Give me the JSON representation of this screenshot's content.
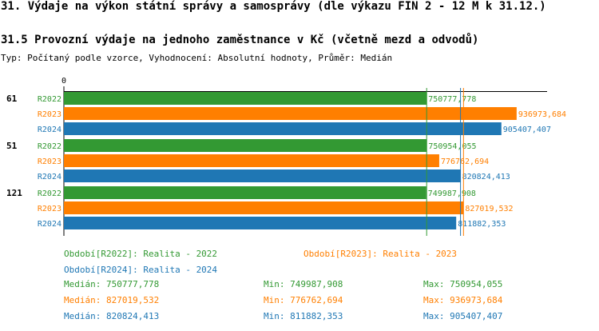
{
  "header": {
    "title": "31. Výdaje na výkon státní správy a samosprávy (dle výkazu FIN 2 - 12 M k 31.12.)",
    "subtitle": "31.5 Provozní výdaje na jednoho zaměstnance v Kč (včetně mezd a odvodů)",
    "meta": "Typ: Počítaný podle vzorce, Vyhodnocení: Absolutní hodnoty, Průměr: Medián"
  },
  "colors": {
    "R2022": "#339933",
    "R2023": "#ff7f00",
    "R2024": "#1f77b4"
  },
  "chart_data": {
    "type": "bar",
    "orientation": "horizontal",
    "axis_zero_label": "0",
    "xlim": [
      0,
      1000000
    ],
    "groups": [
      {
        "label": "61",
        "bars": [
          {
            "series": "R2022",
            "value": 750777.778,
            "text": "750777,778"
          },
          {
            "series": "R2023",
            "value": 936973.684,
            "text": "936973,684"
          },
          {
            "series": "R2024",
            "value": 905407.407,
            "text": "905407,407"
          }
        ]
      },
      {
        "label": "51",
        "bars": [
          {
            "series": "R2022",
            "value": 750954.055,
            "text": "750954,055"
          },
          {
            "series": "R2023",
            "value": 776762.694,
            "text": "776762,694"
          },
          {
            "series": "R2024",
            "value": 820824.413,
            "text": "820824,413"
          }
        ]
      },
      {
        "label": "121",
        "bars": [
          {
            "series": "R2022",
            "value": 749987.908,
            "text": "749987,908"
          },
          {
            "series": "R2023",
            "value": 827019.532,
            "text": "827019,532"
          },
          {
            "series": "R2024",
            "value": 811882.353,
            "text": "811882,353"
          }
        ]
      }
    ],
    "medians": [
      {
        "series": "R2022",
        "value": 750777.778
      },
      {
        "series": "R2023",
        "value": 827019.532
      },
      {
        "series": "R2024",
        "value": 820824.413
      }
    ]
  },
  "legend": {
    "r2022": "Období[R2022]: Realita - 2022",
    "r2023": "Období[R2023]: Realita - 2023",
    "r2024": "Období[R2024]: Realita - 2024"
  },
  "stats": {
    "r2022": {
      "median": "Medián: 750777,778",
      "min": "Min: 749987,908",
      "max": "Max: 750954,055"
    },
    "r2023": {
      "median": "Medián: 827019,532",
      "min": "Min: 776762,694",
      "max": "Max: 936973,684"
    },
    "r2024": {
      "median": "Medián: 820824,413",
      "min": "Min: 811882,353",
      "max": "Max: 905407,407"
    }
  }
}
